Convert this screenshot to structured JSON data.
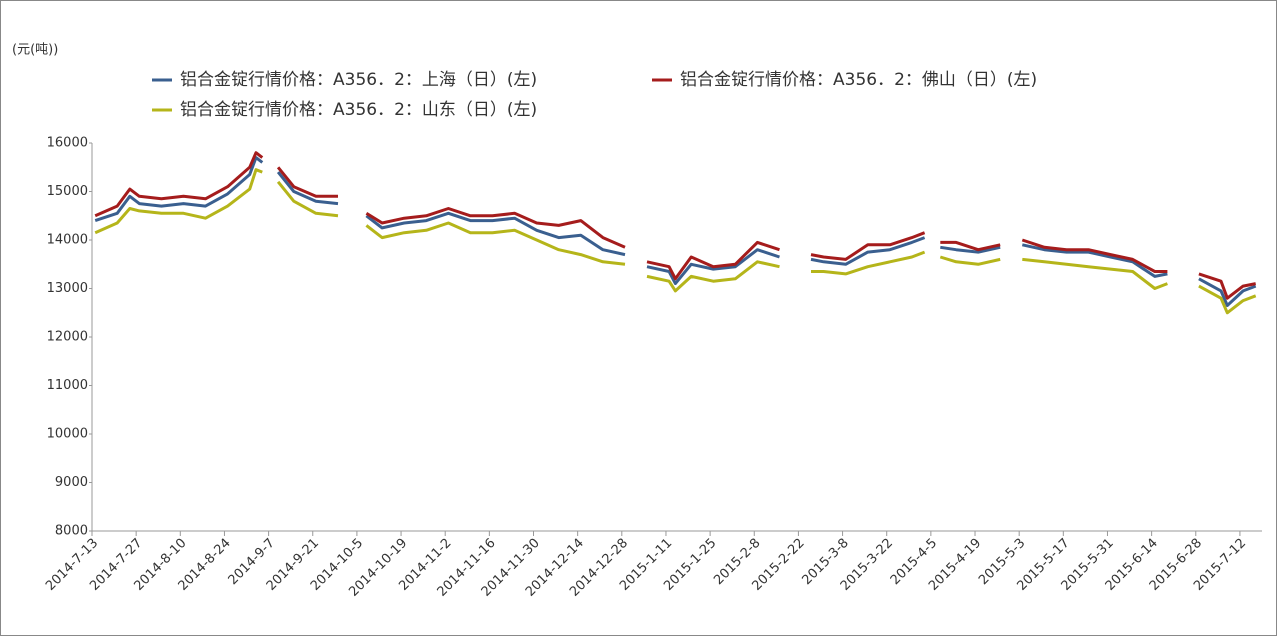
{
  "chart_data": {
    "type": "line",
    "y_label": "(元(吨))",
    "x": [
      "2014-7-14",
      "2014-7-21",
      "2014-7-25",
      "2014-7-28",
      "2014-8-4",
      "2014-8-11",
      "2014-8-18",
      "2014-8-25",
      "2014-9-1",
      "2014-9-3",
      "2014-9-5",
      "2014-9-8",
      "2014-9-10",
      "2014-9-15",
      "2014-9-22",
      "2014-9-29",
      "2014-10-3",
      "2014-10-8",
      "2014-10-13",
      "2014-10-20",
      "2014-10-27",
      "2014-11-3",
      "2014-11-10",
      "2014-11-17",
      "2014-11-24",
      "2014-12-1",
      "2014-12-8",
      "2014-12-15",
      "2014-12-22",
      "2014-12-29",
      "2015-1-1",
      "2015-1-5",
      "2015-1-12",
      "2015-1-14",
      "2015-1-19",
      "2015-1-26",
      "2015-2-2",
      "2015-2-9",
      "2015-2-16",
      "2015-2-20",
      "2015-2-26",
      "2015-3-2",
      "2015-3-9",
      "2015-3-16",
      "2015-3-23",
      "2015-3-30",
      "2015-4-3",
      "2015-4-5",
      "2015-4-8",
      "2015-4-13",
      "2015-4-20",
      "2015-4-27",
      "2015-5-1",
      "2015-5-4",
      "2015-5-11",
      "2015-5-18",
      "2015-5-25",
      "2015-6-1",
      "2015-6-8",
      "2015-6-15",
      "2015-6-19",
      "2015-6-22",
      "2015-6-29",
      "2015-7-6",
      "2015-7-8",
      "2015-7-13",
      "2015-7-17"
    ],
    "series": [
      {
        "name": "铝合金锭行情价格：A356．2：上海（日）(左)",
        "color": "#3a5f8f",
        "values": [
          14400,
          14550,
          14900,
          14750,
          14700,
          14750,
          14700,
          14950,
          15350,
          15700,
          15600,
          null,
          15400,
          15000,
          14800,
          14750,
          null,
          14500,
          14250,
          14350,
          14400,
          14550,
          14400,
          14400,
          14450,
          14200,
          14050,
          14100,
          13800,
          13700,
          null,
          13450,
          13350,
          13100,
          13500,
          13400,
          13450,
          13800,
          13650,
          null,
          13600,
          13550,
          13500,
          13750,
          13800,
          13950,
          14050,
          null,
          13850,
          13800,
          13750,
          13850,
          null,
          13900,
          13800,
          13750,
          13750,
          13650,
          13550,
          13250,
          13300,
          null,
          13200,
          12950,
          12650,
          12950,
          13050
        ]
      },
      {
        "name": "铝合金锭行情价格：A356．2：佛山（日）(左)",
        "color": "#a51c1c",
        "values": [
          14500,
          14700,
          15050,
          14900,
          14850,
          14900,
          14850,
          15100,
          15500,
          15800,
          15700,
          null,
          15500,
          15100,
          14900,
          14900,
          null,
          14550,
          14350,
          14450,
          14500,
          14650,
          14500,
          14500,
          14550,
          14350,
          14300,
          14400,
          14050,
          13850,
          null,
          13550,
          13450,
          13200,
          13650,
          13450,
          13500,
          13950,
          13800,
          null,
          13700,
          13650,
          13600,
          13900,
          13900,
          14050,
          14150,
          null,
          13950,
          13950,
          13800,
          13900,
          null,
          14000,
          13850,
          13800,
          13800,
          13700,
          13600,
          13350,
          13350,
          null,
          13300,
          13150,
          12800,
          13050,
          13100
        ]
      },
      {
        "name": "铝合金锭行情价格：A356．2：山东（日）(左)",
        "color": "#b5b51a",
        "values": [
          14150,
          14350,
          14650,
          14600,
          14550,
          14550,
          14450,
          14700,
          15050,
          15450,
          15400,
          null,
          15200,
          14800,
          14550,
          14500,
          null,
          14300,
          14050,
          14150,
          14200,
          14350,
          14150,
          14150,
          14200,
          14000,
          13800,
          13700,
          13550,
          13500,
          null,
          13250,
          13150,
          12950,
          13250,
          13150,
          13200,
          13550,
          13450,
          null,
          13350,
          13350,
          13300,
          13450,
          13550,
          13650,
          13750,
          null,
          13650,
          13550,
          13500,
          13600,
          null,
          13600,
          13550,
          13500,
          13450,
          13400,
          13350,
          13000,
          13100,
          null,
          13050,
          12800,
          12500,
          12750,
          12850
        ]
      }
    ],
    "xlim": [
      "2014-7-13",
      "2015-7-19"
    ],
    "xticks": [
      "2014-7-13",
      "2014-7-27",
      "2014-8-10",
      "2014-8-24",
      "2014-9-7",
      "2014-9-21",
      "2014-10-5",
      "2014-10-19",
      "2014-11-2",
      "2014-11-16",
      "2014-11-30",
      "2014-12-14",
      "2014-12-28",
      "2015-1-11",
      "2015-1-25",
      "2015-2-8",
      "2015-2-22",
      "2015-3-8",
      "2015-3-22",
      "2015-4-5",
      "2015-4-19",
      "2015-5-3",
      "2015-5-17",
      "2015-5-31",
      "2015-6-14",
      "2015-6-28",
      "2015-7-12"
    ],
    "ylim": [
      8000,
      16000
    ],
    "yticks": [
      8000,
      9000,
      10000,
      11000,
      12000,
      13000,
      14000,
      15000,
      16000
    ],
    "grid": false
  }
}
